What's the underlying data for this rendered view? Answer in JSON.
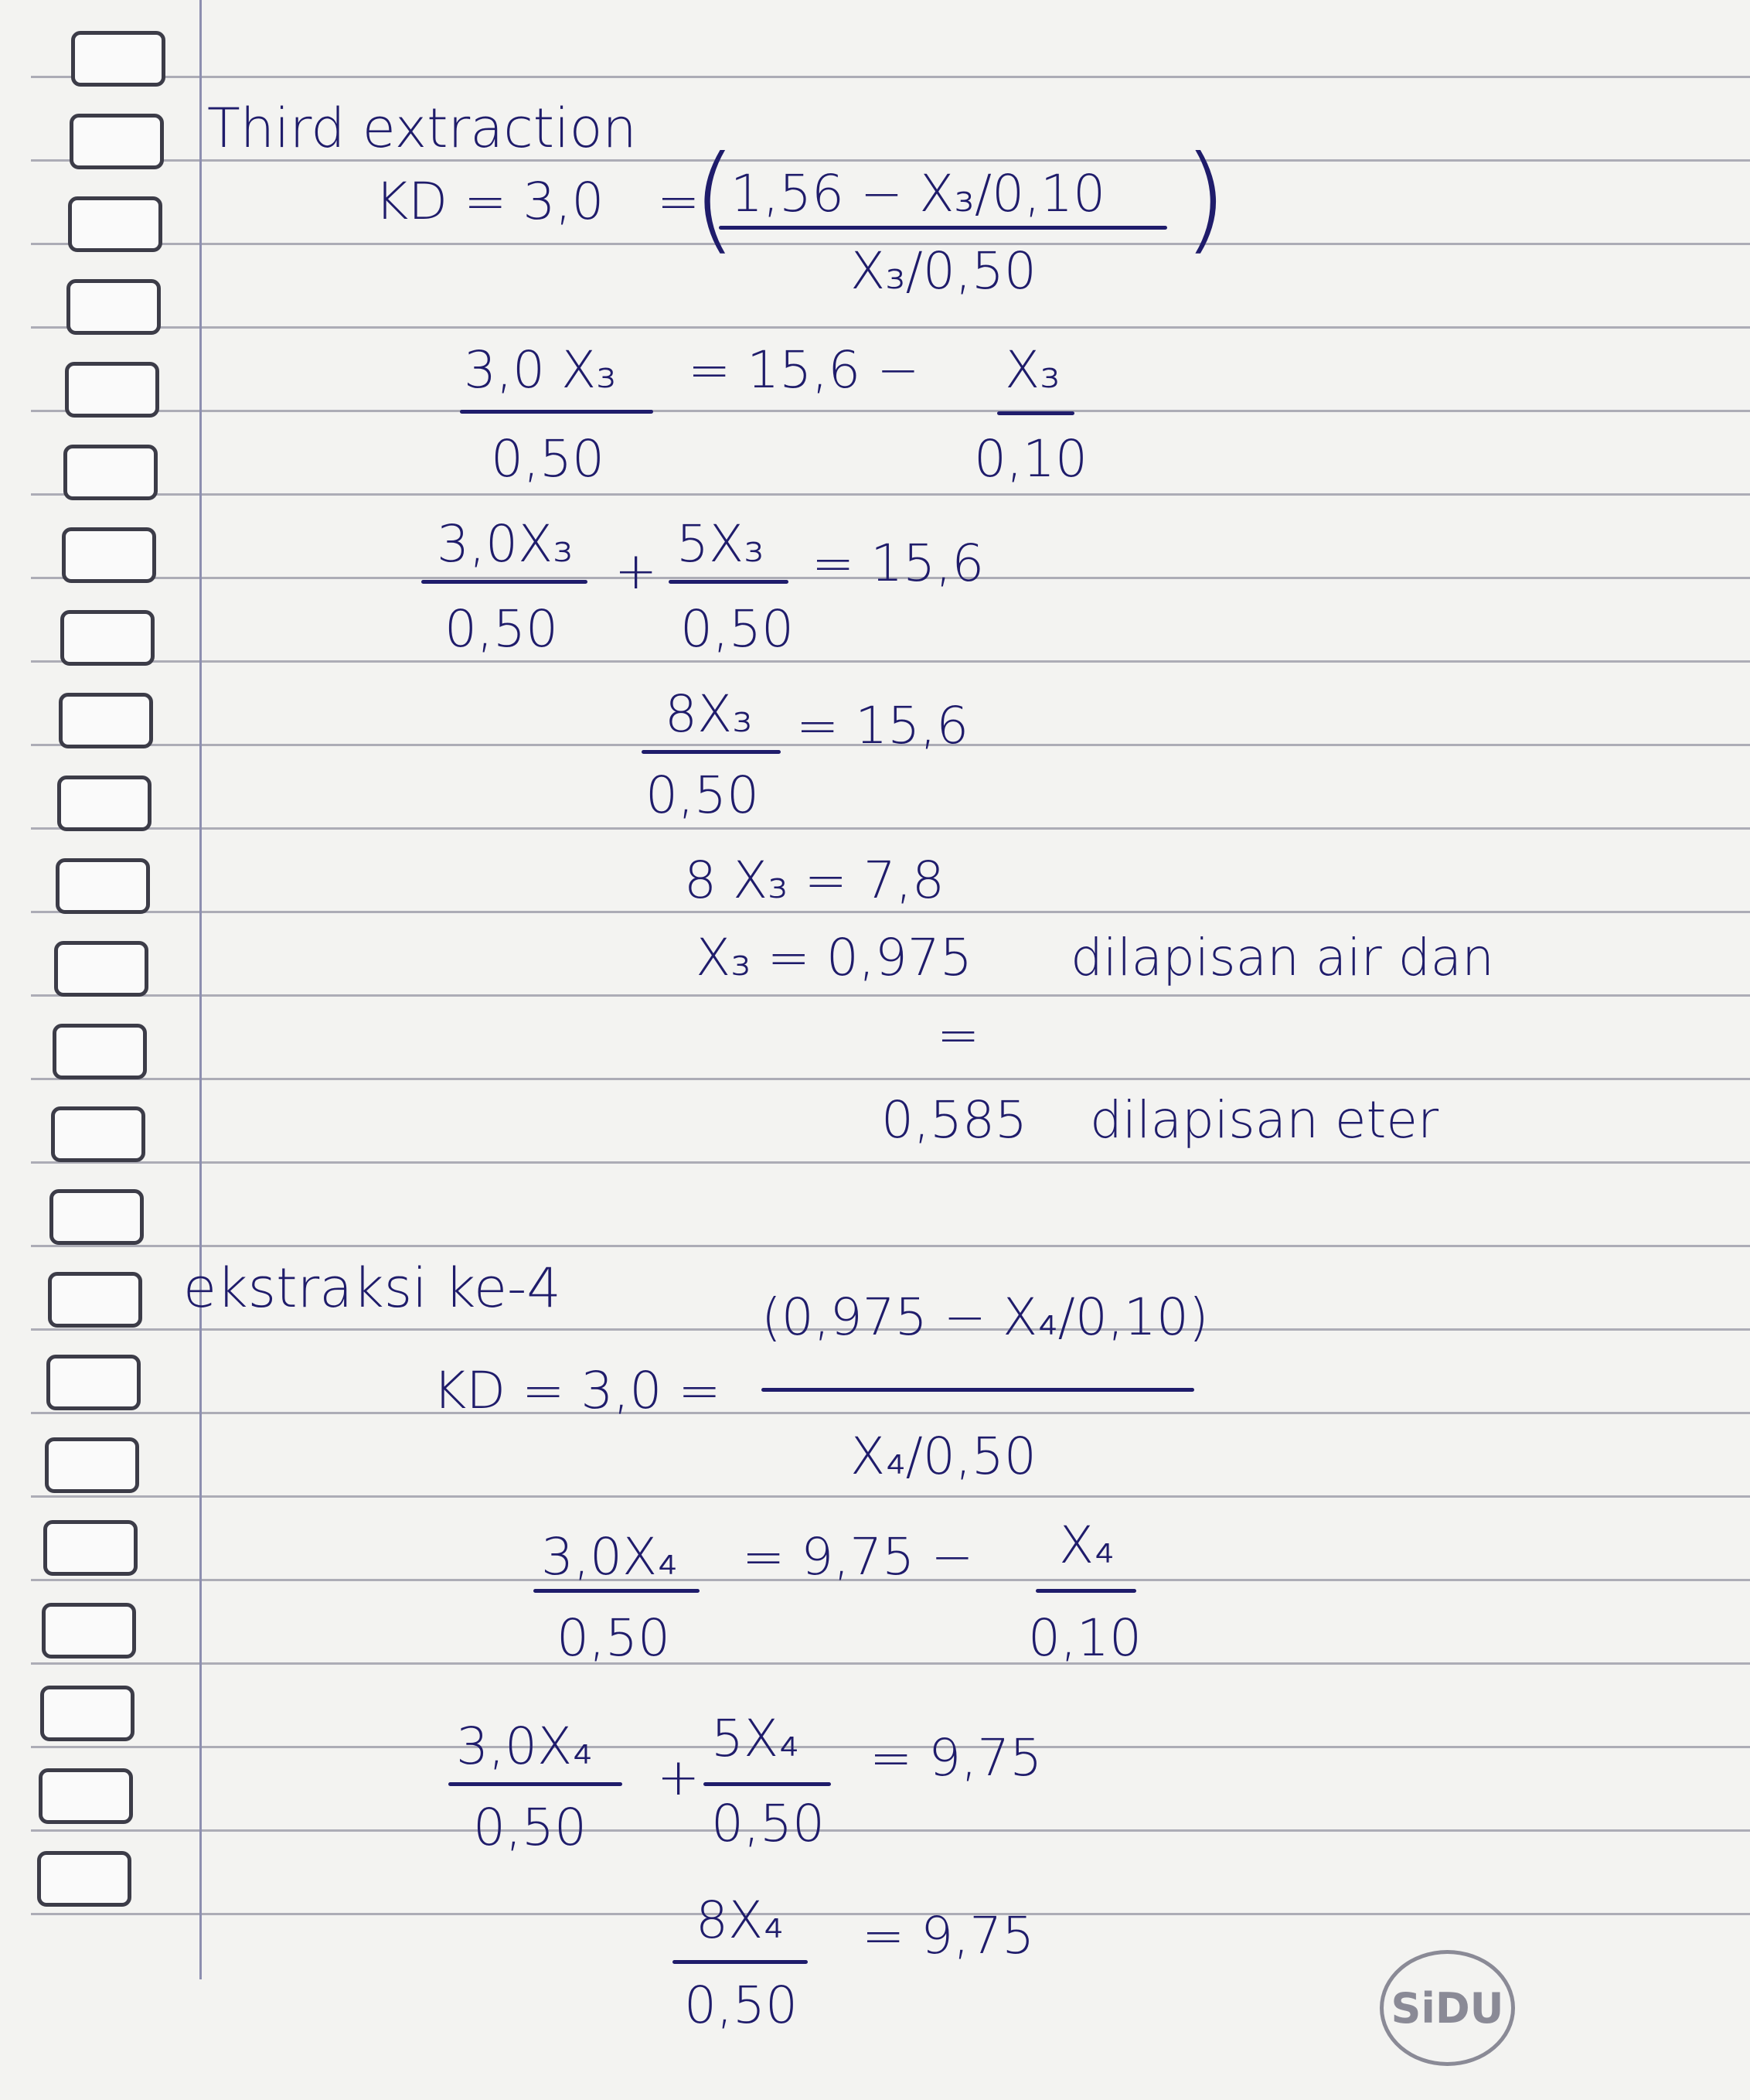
{
  "colors": {
    "ink": "#1f1c6b",
    "paper": "#f3f3f1",
    "rule": "#9a9aa8"
  },
  "section3": {
    "title": "Third extraction",
    "kd": "KD = 3,0",
    "eq": "=",
    "kd_num": "1,56 − X₃/0,10",
    "kd_den": "X₃/0,50",
    "s1": {
      "lhs_num": "3,0 X₃",
      "lhs_den": "0,50",
      "mid": "= 15,6 −",
      "rhs_num": "X₃",
      "rhs_den": "0,10"
    },
    "s2": {
      "a_num": "3,0X₃",
      "a_den": "0,50",
      "plus": "+",
      "b_num": "5X₃",
      "b_den": "0,50",
      "rhs": "= 15,6"
    },
    "s3": {
      "num": "8X₃",
      "den": "0,50",
      "rhs": "= 15,6"
    },
    "s4": "8 X₃ = 7,8",
    "s5": {
      "expr": "X₃ = 0,975",
      "note": "dilapisan air dan"
    },
    "s6": "=",
    "s7": {
      "expr": "0,585",
      "note": "dilapisan eter"
    }
  },
  "section4": {
    "title": "ekstraksi ke-4",
    "kd": "KD = 3,0 =",
    "kd_num": "(0,975 − X₄/0,10)",
    "kd_den": "X₄/0,50",
    "s1": {
      "lhs_num": "3,0X₄",
      "lhs_den": "0,50",
      "mid": "= 9,75 −",
      "rhs_num": "X₄",
      "rhs_den": "0,10"
    },
    "s2": {
      "a_num": "3,0X₄",
      "a_den": "0,50",
      "plus": "+",
      "b_num": "5X₄",
      "b_den": "0,50",
      "rhs": "= 9,75"
    },
    "s3": {
      "num": "8X₄",
      "den": "0,50",
      "rhs": "= 9,75"
    }
  },
  "logo": "SiDU"
}
